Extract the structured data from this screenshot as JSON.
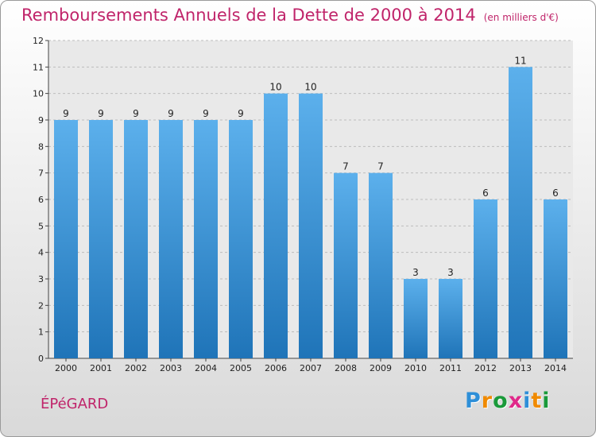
{
  "chart_data": {
    "type": "bar",
    "title": "Remboursements Annuels de la Dette de 2000 à 2014",
    "subtitle": "(en milliers d'€)",
    "categories": [
      "2000",
      "2001",
      "2002",
      "2003",
      "2004",
      "2005",
      "2006",
      "2007",
      "2008",
      "2009",
      "2010",
      "2011",
      "2012",
      "2013",
      "2014"
    ],
    "values": [
      9,
      9,
      9,
      9,
      9,
      9,
      10,
      10,
      7,
      7,
      3,
      3,
      6,
      11,
      6
    ],
    "ylim": [
      0,
      12
    ],
    "yticks": [
      0,
      1,
      2,
      3,
      4,
      5,
      6,
      7,
      8,
      9,
      10,
      11,
      12
    ],
    "xlabel": "",
    "ylabel": "",
    "grid": true
  },
  "commune": "ÉPéGARD",
  "logo": {
    "letters": [
      "P",
      "r",
      "o",
      "x",
      "i",
      "t",
      "i"
    ],
    "colors": [
      "#2e8fd8",
      "#f08a00",
      "#1a9a3a",
      "#e0298a",
      "#2e8fd8",
      "#f08a00",
      "#1a9a3a"
    ]
  },
  "colors": {
    "title": "#c0246a",
    "bar_top": "#5cb0ec",
    "bar_bottom": "#1f74b8"
  }
}
